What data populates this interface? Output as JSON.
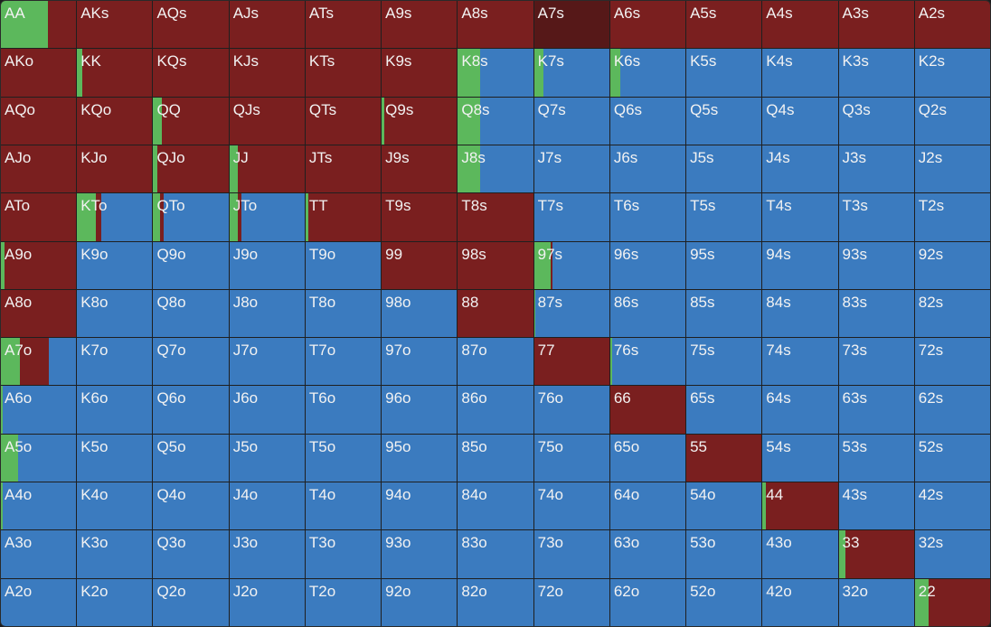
{
  "colors": {
    "raise": "#7a1f1f",
    "call": "#5cb85c",
    "fold": "#3b7bbf",
    "highlight": "#561818"
  },
  "rows": [
    [
      {
        "hand": "AA",
        "call": 0.62,
        "fold": 0
      },
      {
        "hand": "AKs",
        "call": 0,
        "fold": 0
      },
      {
        "hand": "AQs",
        "call": 0,
        "fold": 0
      },
      {
        "hand": "AJs",
        "call": 0,
        "fold": 0
      },
      {
        "hand": "ATs",
        "call": 0,
        "fold": 0
      },
      {
        "hand": "A9s",
        "call": 0,
        "fold": 0
      },
      {
        "hand": "A8s",
        "call": 0,
        "fold": 0
      },
      {
        "hand": "A7s",
        "call": 0,
        "fold": 0,
        "highlight": true
      },
      {
        "hand": "A6s",
        "call": 0,
        "fold": 0
      },
      {
        "hand": "A5s",
        "call": 0,
        "fold": 0
      },
      {
        "hand": "A4s",
        "call": 0,
        "fold": 0
      },
      {
        "hand": "A3s",
        "call": 0,
        "fold": 0
      },
      {
        "hand": "A2s",
        "call": 0,
        "fold": 0
      }
    ],
    [
      {
        "hand": "AKo",
        "call": 0,
        "fold": 0
      },
      {
        "hand": "KK",
        "call": 0.07,
        "fold": 0
      },
      {
        "hand": "KQs",
        "call": 0,
        "fold": 0
      },
      {
        "hand": "KJs",
        "call": 0,
        "fold": 0
      },
      {
        "hand": "KTs",
        "call": 0,
        "fold": 0
      },
      {
        "hand": "K9s",
        "call": 0,
        "fold": 0
      },
      {
        "hand": "K8s",
        "call": 0.3,
        "fold": 0.7
      },
      {
        "hand": "K7s",
        "call": 0.12,
        "fold": 0.88
      },
      {
        "hand": "K6s",
        "call": 0.13,
        "fold": 0.87
      },
      {
        "hand": "K5s",
        "call": 0,
        "fold": 1
      },
      {
        "hand": "K4s",
        "call": 0,
        "fold": 1
      },
      {
        "hand": "K3s",
        "call": 0,
        "fold": 1
      },
      {
        "hand": "K2s",
        "call": 0,
        "fold": 1
      }
    ],
    [
      {
        "hand": "AQo",
        "call": 0,
        "fold": 0
      },
      {
        "hand": "KQo",
        "call": 0,
        "fold": 0
      },
      {
        "hand": "QQ",
        "call": 0.11,
        "fold": 0
      },
      {
        "hand": "QJs",
        "call": 0,
        "fold": 0
      },
      {
        "hand": "QTs",
        "call": 0,
        "fold": 0
      },
      {
        "hand": "Q9s",
        "call": 0.04,
        "fold": 0
      },
      {
        "hand": "Q8s",
        "call": 0.3,
        "fold": 0.7
      },
      {
        "hand": "Q7s",
        "call": 0,
        "fold": 1
      },
      {
        "hand": "Q6s",
        "call": 0,
        "fold": 1
      },
      {
        "hand": "Q5s",
        "call": 0,
        "fold": 1
      },
      {
        "hand": "Q4s",
        "call": 0,
        "fold": 1
      },
      {
        "hand": "Q3s",
        "call": 0,
        "fold": 1
      },
      {
        "hand": "Q2s",
        "call": 0,
        "fold": 1
      }
    ],
    [
      {
        "hand": "AJo",
        "call": 0,
        "fold": 0
      },
      {
        "hand": "KJo",
        "call": 0,
        "fold": 0
      },
      {
        "hand": "QJo",
        "call": 0.06,
        "fold": 0
      },
      {
        "hand": "JJ",
        "call": 0.11,
        "fold": 0
      },
      {
        "hand": "JTs",
        "call": 0,
        "fold": 0
      },
      {
        "hand": "J9s",
        "call": 0,
        "fold": 0
      },
      {
        "hand": "J8s",
        "call": 0.3,
        "fold": 0.7
      },
      {
        "hand": "J7s",
        "call": 0,
        "fold": 1
      },
      {
        "hand": "J6s",
        "call": 0,
        "fold": 1
      },
      {
        "hand": "J5s",
        "call": 0,
        "fold": 1
      },
      {
        "hand": "J4s",
        "call": 0,
        "fold": 1
      },
      {
        "hand": "J3s",
        "call": 0,
        "fold": 1
      },
      {
        "hand": "J2s",
        "call": 0,
        "fold": 1
      }
    ],
    [
      {
        "hand": "ATo",
        "call": 0,
        "fold": 0
      },
      {
        "hand": "KTo",
        "call": 0.25,
        "fold": 0.68
      },
      {
        "hand": "QTo",
        "call": 0.09,
        "fold": 0.86
      },
      {
        "hand": "JTo",
        "call": 0.11,
        "fold": 0.84
      },
      {
        "hand": "TT",
        "call": 0.04,
        "fold": 0
      },
      {
        "hand": "T9s",
        "call": 0,
        "fold": 0
      },
      {
        "hand": "T8s",
        "call": 0,
        "fold": 0
      },
      {
        "hand": "T7s",
        "call": 0,
        "fold": 1
      },
      {
        "hand": "T6s",
        "call": 0,
        "fold": 1
      },
      {
        "hand": "T5s",
        "call": 0,
        "fold": 1
      },
      {
        "hand": "T4s",
        "call": 0,
        "fold": 1
      },
      {
        "hand": "T3s",
        "call": 0,
        "fold": 1
      },
      {
        "hand": "T2s",
        "call": 0,
        "fold": 1
      }
    ],
    [
      {
        "hand": "A9o",
        "call": 0.05,
        "fold": 0
      },
      {
        "hand": "K9o",
        "call": 0,
        "fold": 1
      },
      {
        "hand": "Q9o",
        "call": 0,
        "fold": 1
      },
      {
        "hand": "J9o",
        "call": 0,
        "fold": 1
      },
      {
        "hand": "T9o",
        "call": 0,
        "fold": 1
      },
      {
        "hand": "99",
        "call": 0,
        "fold": 0
      },
      {
        "hand": "98s",
        "call": 0,
        "fold": 0
      },
      {
        "hand": "97s",
        "call": 0.22,
        "fold": 0.75
      },
      {
        "hand": "96s",
        "call": 0,
        "fold": 1
      },
      {
        "hand": "95s",
        "call": 0,
        "fold": 1
      },
      {
        "hand": "94s",
        "call": 0,
        "fold": 1
      },
      {
        "hand": "93s",
        "call": 0,
        "fold": 1
      },
      {
        "hand": "92s",
        "call": 0,
        "fold": 1
      }
    ],
    [
      {
        "hand": "A8o",
        "call": 0,
        "fold": 0
      },
      {
        "hand": "K8o",
        "call": 0,
        "fold": 1
      },
      {
        "hand": "Q8o",
        "call": 0,
        "fold": 1
      },
      {
        "hand": "J8o",
        "call": 0,
        "fold": 1
      },
      {
        "hand": "T8o",
        "call": 0,
        "fold": 1
      },
      {
        "hand": "98o",
        "call": 0,
        "fold": 1
      },
      {
        "hand": "88",
        "call": 0,
        "fold": 0
      },
      {
        "hand": "87s",
        "call": 0.02,
        "fold": 0.98
      },
      {
        "hand": "86s",
        "call": 0,
        "fold": 1
      },
      {
        "hand": "85s",
        "call": 0,
        "fold": 1
      },
      {
        "hand": "84s",
        "call": 0,
        "fold": 1
      },
      {
        "hand": "83s",
        "call": 0,
        "fold": 1
      },
      {
        "hand": "82s",
        "call": 0,
        "fold": 1
      }
    ],
    [
      {
        "hand": "A7o",
        "call": 0.25,
        "fold": 0.36
      },
      {
        "hand": "K7o",
        "call": 0,
        "fold": 1
      },
      {
        "hand": "Q7o",
        "call": 0,
        "fold": 1
      },
      {
        "hand": "J7o",
        "call": 0,
        "fold": 1
      },
      {
        "hand": "T7o",
        "call": 0,
        "fold": 1
      },
      {
        "hand": "97o",
        "call": 0,
        "fold": 1
      },
      {
        "hand": "87o",
        "call": 0,
        "fold": 1
      },
      {
        "hand": "77",
        "call": 0,
        "fold": 0
      },
      {
        "hand": "76s",
        "call": 0.03,
        "fold": 0.97
      },
      {
        "hand": "75s",
        "call": 0,
        "fold": 1
      },
      {
        "hand": "74s",
        "call": 0,
        "fold": 1
      },
      {
        "hand": "73s",
        "call": 0,
        "fold": 1
      },
      {
        "hand": "72s",
        "call": 0,
        "fold": 1
      }
    ],
    [
      {
        "hand": "A6o",
        "call": 0.03,
        "fold": 0.97
      },
      {
        "hand": "K6o",
        "call": 0,
        "fold": 1
      },
      {
        "hand": "Q6o",
        "call": 0,
        "fold": 1
      },
      {
        "hand": "J6o",
        "call": 0,
        "fold": 1
      },
      {
        "hand": "T6o",
        "call": 0,
        "fold": 1
      },
      {
        "hand": "96o",
        "call": 0,
        "fold": 1
      },
      {
        "hand": "86o",
        "call": 0,
        "fold": 1
      },
      {
        "hand": "76o",
        "call": 0,
        "fold": 1
      },
      {
        "hand": "66",
        "call": 0,
        "fold": 0
      },
      {
        "hand": "65s",
        "call": 0,
        "fold": 1
      },
      {
        "hand": "64s",
        "call": 0,
        "fold": 1
      },
      {
        "hand": "63s",
        "call": 0,
        "fold": 1
      },
      {
        "hand": "62s",
        "call": 0,
        "fold": 1
      }
    ],
    [
      {
        "hand": "A5o",
        "call": 0.23,
        "fold": 0.77
      },
      {
        "hand": "K5o",
        "call": 0,
        "fold": 1
      },
      {
        "hand": "Q5o",
        "call": 0,
        "fold": 1
      },
      {
        "hand": "J5o",
        "call": 0,
        "fold": 1
      },
      {
        "hand": "T5o",
        "call": 0,
        "fold": 1
      },
      {
        "hand": "95o",
        "call": 0,
        "fold": 1
      },
      {
        "hand": "85o",
        "call": 0,
        "fold": 1
      },
      {
        "hand": "75o",
        "call": 0,
        "fold": 1
      },
      {
        "hand": "65o",
        "call": 0,
        "fold": 1
      },
      {
        "hand": "55",
        "call": 0,
        "fold": 0
      },
      {
        "hand": "54s",
        "call": 0,
        "fold": 1
      },
      {
        "hand": "53s",
        "call": 0,
        "fold": 1
      },
      {
        "hand": "52s",
        "call": 0,
        "fold": 1
      }
    ],
    [
      {
        "hand": "A4o",
        "call": 0.02,
        "fold": 0.98
      },
      {
        "hand": "K4o",
        "call": 0,
        "fold": 1
      },
      {
        "hand": "Q4o",
        "call": 0,
        "fold": 1
      },
      {
        "hand": "J4o",
        "call": 0,
        "fold": 1
      },
      {
        "hand": "T4o",
        "call": 0,
        "fold": 1
      },
      {
        "hand": "94o",
        "call": 0,
        "fold": 1
      },
      {
        "hand": "84o",
        "call": 0,
        "fold": 1
      },
      {
        "hand": "74o",
        "call": 0,
        "fold": 1
      },
      {
        "hand": "64o",
        "call": 0,
        "fold": 1
      },
      {
        "hand": "54o",
        "call": 0,
        "fold": 1
      },
      {
        "hand": "44",
        "call": 0.04,
        "fold": 0
      },
      {
        "hand": "43s",
        "call": 0,
        "fold": 1
      },
      {
        "hand": "42s",
        "call": 0,
        "fold": 1
      }
    ],
    [
      {
        "hand": "A3o",
        "call": 0,
        "fold": 1
      },
      {
        "hand": "K3o",
        "call": 0,
        "fold": 1
      },
      {
        "hand": "Q3o",
        "call": 0,
        "fold": 1
      },
      {
        "hand": "J3o",
        "call": 0,
        "fold": 1
      },
      {
        "hand": "T3o",
        "call": 0,
        "fold": 1
      },
      {
        "hand": "93o",
        "call": 0,
        "fold": 1
      },
      {
        "hand": "83o",
        "call": 0,
        "fold": 1
      },
      {
        "hand": "73o",
        "call": 0,
        "fold": 1
      },
      {
        "hand": "63o",
        "call": 0,
        "fold": 1
      },
      {
        "hand": "53o",
        "call": 0,
        "fold": 1
      },
      {
        "hand": "43o",
        "call": 0,
        "fold": 1
      },
      {
        "hand": "33",
        "call": 0.09,
        "fold": 0
      },
      {
        "hand": "32s",
        "call": 0,
        "fold": 1
      }
    ],
    [
      {
        "hand": "A2o",
        "call": 0,
        "fold": 1
      },
      {
        "hand": "K2o",
        "call": 0,
        "fold": 1
      },
      {
        "hand": "Q2o",
        "call": 0,
        "fold": 1
      },
      {
        "hand": "J2o",
        "call": 0,
        "fold": 1
      },
      {
        "hand": "T2o",
        "call": 0,
        "fold": 1
      },
      {
        "hand": "92o",
        "call": 0,
        "fold": 1
      },
      {
        "hand": "82o",
        "call": 0,
        "fold": 1
      },
      {
        "hand": "72o",
        "call": 0,
        "fold": 1
      },
      {
        "hand": "62o",
        "call": 0,
        "fold": 1
      },
      {
        "hand": "52o",
        "call": 0,
        "fold": 1
      },
      {
        "hand": "42o",
        "call": 0,
        "fold": 1
      },
      {
        "hand": "32o",
        "call": 0,
        "fold": 1
      },
      {
        "hand": "22",
        "call": 0.18,
        "fold": 0
      }
    ]
  ]
}
